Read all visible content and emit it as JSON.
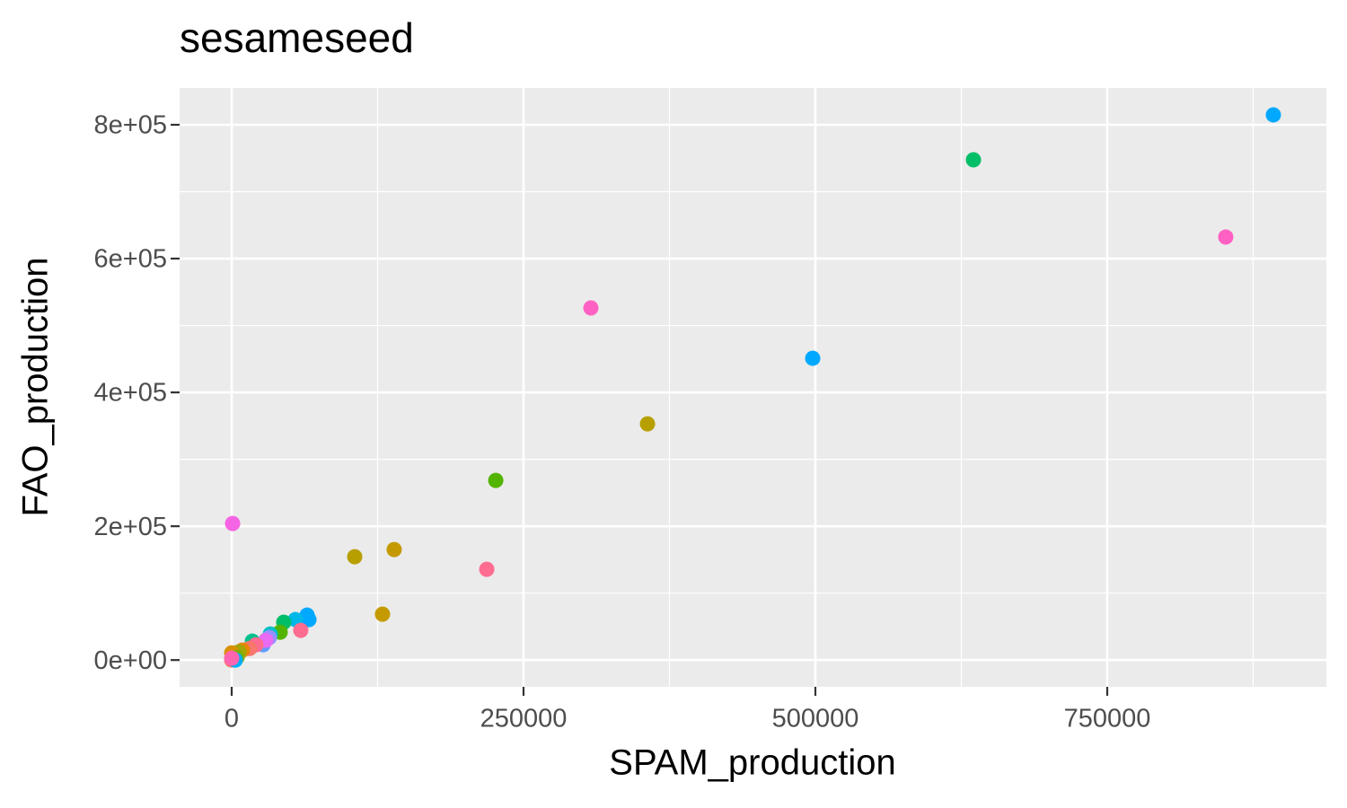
{
  "chart_data": {
    "type": "scatter",
    "title": "sesameseed",
    "x_label": "SPAM_production",
    "y_label": "FAO_production",
    "x": [
      892300,
      635400,
      851500,
      307700,
      497700,
      356200,
      226200,
      800,
      105400,
      139200,
      218500,
      129200,
      64600,
      66200,
      54600,
      44600,
      59200,
      41500,
      33100,
      32300,
      26900,
      29200,
      17700,
      20800,
      15400,
      9200,
      6200,
      0,
      4600,
      0,
      3100,
      0
    ],
    "y": [
      814800,
      747700,
      632200,
      526200,
      451000,
      353000,
      268500,
      204000,
      154400,
      165100,
      135600,
      68500,
      67100,
      60400,
      60400,
      56400,
      44300,
      41600,
      38900,
      33600,
      22800,
      29500,
      28200,
      22800,
      17400,
      14800,
      12100,
      10700,
      4000,
      0,
      0,
      2700
    ],
    "colors": [
      "#00A9FF",
      "#00BE67",
      "#FF61C3",
      "#FF61C3",
      "#00A9FF",
      "#B79F00",
      "#53B400",
      "#F564E3",
      "#B79F00",
      "#C49A00",
      "#FF6C91",
      "#C49A00",
      "#00A9FF",
      "#00A9FF",
      "#00B8E7",
      "#00BE67",
      "#FF6C91",
      "#53B400",
      "#00BFC4",
      "#9590FF",
      "#619CFF",
      "#E76BF3",
      "#00C08B",
      "#FF6C91",
      "#F8766D",
      "#E58700",
      "#A3A500",
      "#D89000",
      "#7CAE00",
      "#F8766D",
      "#00B0F6",
      "#FF64B0"
    ],
    "xlim": [
      -44615,
      937692
    ],
    "ylim": [
      -40000,
      855000
    ],
    "xticks": [
      0,
      250000,
      500000,
      750000
    ],
    "yticks": [
      {
        "value": 0,
        "label": "0e+00"
      },
      {
        "value": 200000,
        "label": "2e+05"
      },
      {
        "value": 400000,
        "label": "4e+05"
      },
      {
        "value": 600000,
        "label": "6e+05"
      },
      {
        "value": 800000,
        "label": "8e+05"
      }
    ],
    "grid": true
  }
}
